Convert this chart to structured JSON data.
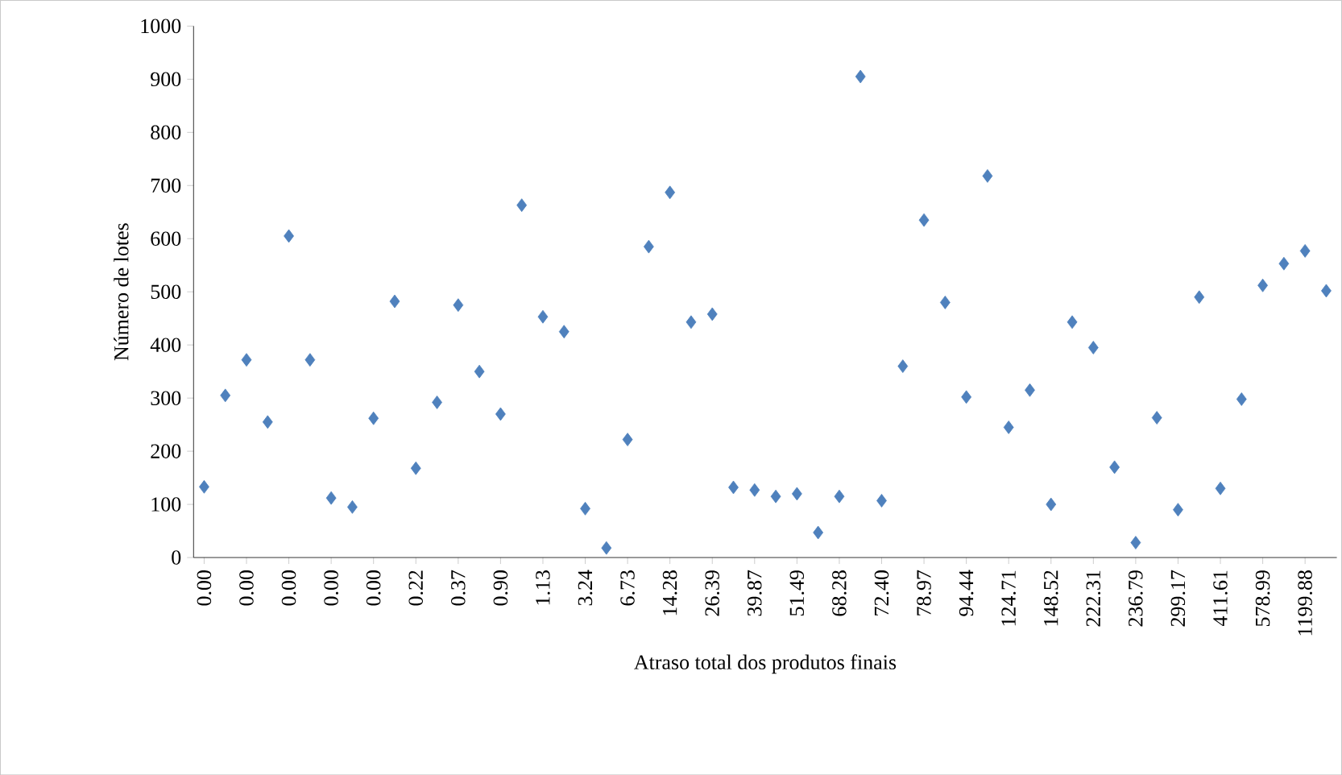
{
  "chart_data": {
    "type": "scatter",
    "xlabel": "Atraso total dos produtos finais",
    "ylabel": "Número de lotes",
    "categories": [
      "0.00",
      null,
      "0.00",
      null,
      "0.00",
      null,
      "0.00",
      null,
      "0.00",
      null,
      "0.22",
      null,
      "0.37",
      null,
      "0.90",
      null,
      "1.13",
      null,
      "3.24",
      null,
      "6.73",
      null,
      "14.28",
      null,
      "26.39",
      null,
      "39.87",
      null,
      "51.49",
      null,
      "68.28",
      null,
      "72.40",
      null,
      "78.97",
      null,
      "94.44",
      null,
      "124.71",
      null,
      "148.52",
      null,
      "222.31",
      null,
      "236.79",
      null,
      "299.17",
      null,
      "411.61",
      null,
      "578.99",
      null,
      "1199.88",
      null
    ],
    "values": [
      133,
      305,
      372,
      255,
      605,
      372,
      112,
      95,
      262,
      482,
      168,
      292,
      475,
      350,
      270,
      663,
      453,
      425,
      92,
      18,
      222,
      585,
      687,
      443,
      458,
      132,
      127,
      115,
      120,
      47,
      115,
      905,
      107,
      360,
      635,
      480,
      302,
      718,
      245,
      315,
      100,
      443,
      395,
      170,
      28,
      263,
      90,
      490,
      130,
      298,
      512,
      553,
      577,
      502
    ],
    "color": "#4f81bd",
    "marker": "diamond",
    "ylim": [
      0,
      1000
    ],
    "yticks": [
      0,
      100,
      200,
      300,
      400,
      500,
      600,
      700,
      800,
      900,
      1000
    ],
    "grid": false
  }
}
